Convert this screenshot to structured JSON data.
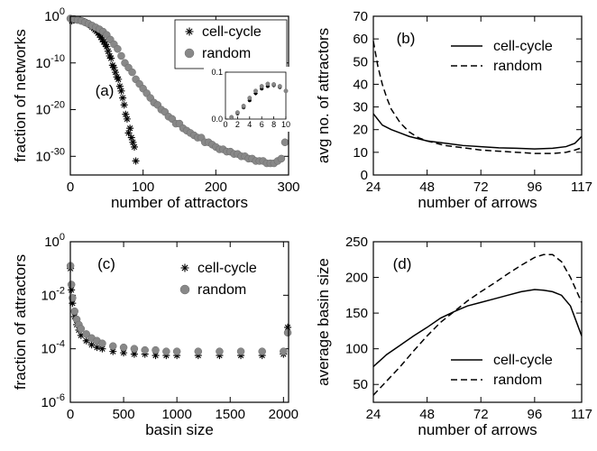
{
  "chart_data": [
    {
      "panel": "(a)",
      "type": "scatter",
      "xlabel": "number of attractors",
      "ylabel": "fraction of networks",
      "xlim": [
        0,
        300
      ],
      "yscale": "log",
      "ylim_exponent": [
        -34,
        0
      ],
      "xticks": [
        "0",
        "100",
        "200",
        "300"
      ],
      "yticks": [
        {
          "base": "10",
          "exp": "0",
          "e": 0
        },
        {
          "base": "10",
          "exp": "-10",
          "e": -10
        },
        {
          "base": "10",
          "exp": "-20",
          "e": -20
        },
        {
          "base": "10",
          "exp": "-30",
          "e": -30
        }
      ],
      "legend": {
        "position": "top-right",
        "entries": [
          "cell-cycle",
          "random"
        ]
      },
      "series": [
        {
          "name": "cell-cycle",
          "marker": "asterisk",
          "color": "#000000",
          "x": [
            2,
            4,
            6,
            8,
            10,
            12,
            14,
            16,
            18,
            20,
            22,
            24,
            26,
            28,
            30,
            32,
            34,
            36,
            38,
            40,
            42,
            44,
            46,
            48,
            50,
            52,
            54,
            56,
            58,
            60,
            62,
            64,
            66,
            68,
            70,
            72,
            74,
            76,
            78,
            80,
            82,
            84,
            86,
            88,
            90
          ],
          "log10y": [
            -1,
            -0.8,
            -0.7,
            -0.7,
            -0.7,
            -0.8,
            -0.9,
            -1,
            -1.1,
            -1.2,
            -1.4,
            -1.6,
            -1.8,
            -2,
            -2.3,
            -2.6,
            -2.9,
            -3.2,
            -3.6,
            -4,
            -4.5,
            -5,
            -5.5,
            -6,
            -6.5,
            -7.5,
            -8.5,
            -9,
            -10.5,
            -11,
            -12,
            -13,
            -13.5,
            -15,
            -16,
            -17.5,
            -19,
            -21,
            -22,
            -25,
            -24,
            -26,
            -27,
            -28,
            -31
          ]
        },
        {
          "name": "random",
          "marker": "circle",
          "color": "#888888",
          "x": [
            0,
            5,
            10,
            15,
            20,
            25,
            30,
            35,
            40,
            45,
            50,
            55,
            60,
            65,
            70,
            75,
            80,
            85,
            90,
            95,
            100,
            105,
            110,
            115,
            120,
            125,
            130,
            135,
            140,
            145,
            150,
            155,
            160,
            165,
            170,
            175,
            180,
            185,
            190,
            195,
            200,
            205,
            210,
            215,
            220,
            225,
            230,
            235,
            240,
            245,
            250,
            255,
            260,
            265,
            270,
            275,
            280,
            285,
            290,
            295
          ],
          "log10y": [
            -0.5,
            -0.6,
            -0.8,
            -1,
            -1.3,
            -1.6,
            -2,
            -2.4,
            -2.8,
            -3.3,
            -4,
            -5,
            -6,
            -7,
            -8.5,
            -10,
            -11,
            -12,
            -13.5,
            -14.5,
            -15.5,
            -16.5,
            -17.5,
            -18.5,
            -19,
            -20,
            -20.5,
            -21.5,
            -22,
            -23,
            -23,
            -24,
            -24.5,
            -25,
            -25.5,
            -26,
            -26,
            -27,
            -27,
            -27.5,
            -28,
            -28.5,
            -28.5,
            -29,
            -29,
            -29.5,
            -29.5,
            -30,
            -30,
            -30.5,
            -30.5,
            -31,
            -31,
            -31,
            -31.5,
            -31.5,
            -31.5,
            -31,
            -30.5,
            -27
          ]
        }
      ],
      "inset": {
        "type": "scatter",
        "xlim": [
          0,
          10
        ],
        "ylim": [
          0,
          0.1
        ],
        "xticks": [
          "0",
          "2",
          "4",
          "6",
          "8",
          "10"
        ],
        "yticks": [
          "0.0",
          "0.1"
        ],
        "series": [
          {
            "name": "cell-cycle",
            "x": [
              1,
              2,
              3,
              4,
              5,
              6,
              7,
              8,
              9
            ],
            "y": [
              0.003,
              0.012,
              0.025,
              0.04,
              0.055,
              0.065,
              0.07,
              0.072,
              0.068
            ]
          },
          {
            "name": "random",
            "x": [
              1,
              2,
              3,
              4,
              5,
              6,
              7,
              8,
              9,
              10
            ],
            "y": [
              0.004,
              0.014,
              0.028,
              0.045,
              0.06,
              0.07,
              0.075,
              0.074,
              0.07,
              0.06
            ]
          }
        ]
      }
    },
    {
      "panel": "(b)",
      "type": "line",
      "xlabel": "number of arrows",
      "ylabel": "avg no. of attractors",
      "xlim": [
        24,
        117
      ],
      "ylim": [
        0,
        70
      ],
      "xticks": [
        "24",
        "48",
        "72",
        "96",
        "117"
      ],
      "yticks": [
        "0",
        "10",
        "20",
        "30",
        "40",
        "50",
        "60",
        "70"
      ],
      "legend": {
        "position": "top-right",
        "entries": [
          "cell-cycle",
          "random"
        ]
      },
      "series": [
        {
          "name": "cell-cycle",
          "style": "solid",
          "x": [
            24,
            28,
            32,
            36,
            40,
            48,
            56,
            64,
            72,
            80,
            88,
            96,
            104,
            110,
            114,
            117
          ],
          "y": [
            27,
            22,
            20,
            18.5,
            17,
            15,
            14,
            13,
            12.5,
            12,
            11.8,
            11.5,
            11.8,
            12.5,
            14,
            17
          ]
        },
        {
          "name": "random",
          "style": "dashed",
          "x": [
            24,
            26,
            28,
            30,
            32,
            36,
            40,
            44,
            48,
            56,
            64,
            72,
            80,
            88,
            96,
            104,
            110,
            114,
            117
          ],
          "y": [
            59,
            48,
            40,
            34,
            29,
            23,
            19,
            16.5,
            15,
            13,
            12,
            11,
            10.5,
            10,
            9.5,
            9.5,
            10,
            11,
            12
          ]
        }
      ]
    },
    {
      "panel": "(c)",
      "type": "scatter",
      "xlabel": "basin size",
      "ylabel": "fraction of attractors",
      "xlim": [
        0,
        2048
      ],
      "yscale": "log",
      "ylim_exponent": [
        -6,
        0
      ],
      "xticks": [
        "0",
        "500",
        "1000",
        "1500",
        "2000"
      ],
      "yticks": [
        {
          "base": "10",
          "exp": "0",
          "e": 0
        },
        {
          "base": "10",
          "exp": "-2",
          "e": -2
        },
        {
          "base": "10",
          "exp": "-4",
          "e": -4
        },
        {
          "base": "10",
          "exp": "-6",
          "e": -6
        }
      ],
      "legend": {
        "position": "top-right",
        "entries": [
          "cell-cycle",
          "random"
        ]
      },
      "series": [
        {
          "name": "cell-cycle",
          "marker": "asterisk",
          "color": "#000000",
          "x": [
            1,
            10,
            20,
            40,
            60,
            80,
            100,
            150,
            200,
            250,
            300,
            400,
            500,
            600,
            700,
            800,
            900,
            1000,
            1200,
            1400,
            1600,
            1800,
            2000,
            2040
          ],
          "log10y": [
            -1,
            -1.8,
            -2.3,
            -2.8,
            -3.1,
            -3.3,
            -3.5,
            -3.7,
            -3.85,
            -3.95,
            -4,
            -4.1,
            -4.15,
            -4.2,
            -4.2,
            -4.25,
            -4.25,
            -4.25,
            -4.25,
            -4.25,
            -4.25,
            -4.25,
            -4.2,
            -3.2
          ]
        },
        {
          "name": "random",
          "marker": "circle",
          "color": "#888888",
          "x": [
            1,
            10,
            20,
            40,
            60,
            80,
            100,
            150,
            200,
            250,
            300,
            400,
            500,
            600,
            700,
            800,
            900,
            1000,
            1200,
            1400,
            1600,
            1800,
            2000,
            2040
          ],
          "log10y": [
            -0.9,
            -1.6,
            -2.1,
            -2.6,
            -2.9,
            -3.1,
            -3.25,
            -3.45,
            -3.6,
            -3.7,
            -3.8,
            -3.9,
            -3.95,
            -4,
            -4.05,
            -4.05,
            -4.1,
            -4.1,
            -4.1,
            -4.1,
            -4.1,
            -4.1,
            -4.1,
            -3.4
          ]
        }
      ]
    },
    {
      "panel": "(d)",
      "type": "line",
      "xlabel": "number of arrows",
      "ylabel": "average basin size",
      "xlim": [
        24,
        117
      ],
      "ylim": [
        25,
        250
      ],
      "xticks": [
        "24",
        "48",
        "72",
        "96",
        "117"
      ],
      "yticks": [
        "50",
        "100",
        "150",
        "200",
        "250"
      ],
      "legend": {
        "position": "bottom-right",
        "entries": [
          "cell-cycle",
          "random"
        ]
      },
      "series": [
        {
          "name": "cell-cycle",
          "style": "solid",
          "x": [
            24,
            30,
            36,
            42,
            48,
            54,
            60,
            66,
            72,
            78,
            84,
            90,
            96,
            100,
            104,
            108,
            112,
            117
          ],
          "y": [
            75,
            92,
            105,
            118,
            130,
            143,
            152,
            160,
            165,
            170,
            175,
            180,
            183,
            182,
            180,
            175,
            160,
            118
          ]
        },
        {
          "name": "random",
          "style": "dashed",
          "x": [
            24,
            30,
            36,
            42,
            48,
            54,
            60,
            66,
            72,
            78,
            84,
            90,
            96,
            100,
            104,
            108,
            112,
            117
          ],
          "y": [
            35,
            55,
            75,
            97,
            118,
            137,
            152,
            167,
            180,
            192,
            205,
            217,
            228,
            232,
            232,
            222,
            200,
            165
          ]
        }
      ]
    }
  ]
}
